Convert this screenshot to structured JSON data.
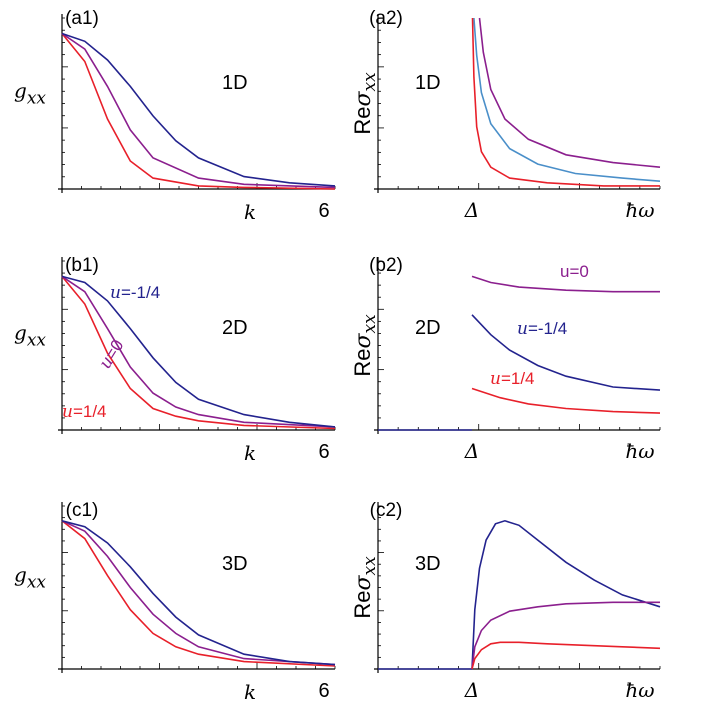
{
  "colors": {
    "red": "#e8202a",
    "purple": "#8b1f8e",
    "blue": "#23238e",
    "lightblue": "#4a8fc9"
  },
  "chart_data": [
    {
      "id": "a1",
      "type": "line",
      "panel_label": "(a1)",
      "dimension_label": "1D",
      "ylabel_main": "g",
      "ylabel_sub": "xx",
      "xlabel": "k",
      "x_end_tick": "6",
      "xlim": [
        0,
        6
      ],
      "ylim": [
        0,
        1.1
      ],
      "series": [
        {
          "color": "red",
          "x": [
            0,
            0.5,
            1,
            1.5,
            2,
            3,
            4,
            6
          ],
          "y": [
            1.0,
            0.82,
            0.45,
            0.18,
            0.07,
            0.02,
            0.01,
            0.0
          ]
        },
        {
          "color": "purple",
          "x": [
            0,
            0.5,
            1,
            1.5,
            2,
            3,
            4,
            6
          ],
          "y": [
            1.0,
            0.9,
            0.66,
            0.38,
            0.2,
            0.07,
            0.03,
            0.01
          ]
        },
        {
          "color": "blue",
          "x": [
            0,
            0.5,
            1,
            1.5,
            2,
            2.5,
            3,
            4,
            5,
            6
          ],
          "y": [
            1.0,
            0.95,
            0.83,
            0.66,
            0.47,
            0.31,
            0.2,
            0.08,
            0.04,
            0.02
          ]
        }
      ]
    },
    {
      "id": "a2",
      "type": "line",
      "panel_label": "(a2)",
      "dimension_label": "1D",
      "ylabel_prefix": "Re",
      "ylabel_sym": "σ",
      "ylabel_sub": "xx",
      "xlabel": "ħω",
      "x_marker_label": "Δ",
      "x_marker": 1,
      "xlim": [
        0,
        3
      ],
      "ylim": [
        0,
        1.1
      ],
      "series": [
        {
          "color": "purple",
          "x": [
            1.08,
            1.12,
            1.2,
            1.35,
            1.6,
            2.0,
            2.5,
            3.0
          ],
          "y": [
            1.1,
            0.88,
            0.64,
            0.45,
            0.32,
            0.22,
            0.17,
            0.14
          ]
        },
        {
          "color": "lightblue",
          "x": [
            1.02,
            1.05,
            1.1,
            1.2,
            1.4,
            1.7,
            2.1,
            2.6,
            3.0
          ],
          "y": [
            1.1,
            0.86,
            0.62,
            0.42,
            0.26,
            0.16,
            0.1,
            0.07,
            0.05
          ]
        },
        {
          "color": "red",
          "x": [
            1.005,
            1.02,
            1.05,
            1.1,
            1.2,
            1.4,
            1.8,
            2.4,
            3.0
          ],
          "y": [
            1.1,
            0.72,
            0.4,
            0.24,
            0.14,
            0.07,
            0.04,
            0.02,
            0.02
          ]
        }
      ]
    },
    {
      "id": "b1",
      "type": "line",
      "panel_label": "(b1)",
      "dimension_label": "2D",
      "ylabel_main": "g",
      "ylabel_sub": "xx",
      "xlabel": "k",
      "x_end_tick": "6",
      "xlim": [
        0,
        6
      ],
      "ylim": [
        0,
        1.1
      ],
      "series": [
        {
          "color": "red",
          "name": "u=1/4",
          "name_italic": "u",
          "name_rest": "=1/4",
          "x": [
            0,
            0.5,
            1,
            1.5,
            2,
            2.5,
            3,
            4,
            6
          ],
          "y": [
            1.0,
            0.82,
            0.5,
            0.27,
            0.14,
            0.09,
            0.06,
            0.03,
            0.01
          ]
        },
        {
          "color": "purple",
          "name": "u=0",
          "name_italic": "u",
          "name_rest": "=0",
          "x": [
            0,
            0.5,
            1,
            1.5,
            2,
            2.5,
            3,
            4,
            6
          ],
          "y": [
            1.0,
            0.9,
            0.66,
            0.41,
            0.24,
            0.15,
            0.1,
            0.05,
            0.02
          ]
        },
        {
          "color": "blue",
          "name": "u=-1/4",
          "name_italic": "u",
          "name_rest": "=-1/4",
          "x": [
            0,
            0.5,
            1,
            1.5,
            2,
            2.5,
            3,
            4,
            5,
            6
          ],
          "y": [
            1.0,
            0.96,
            0.84,
            0.66,
            0.47,
            0.31,
            0.2,
            0.1,
            0.05,
            0.02
          ]
        }
      ]
    },
    {
      "id": "b2",
      "type": "line",
      "panel_label": "(b2)",
      "dimension_label": "2D",
      "ylabel_prefix": "Re",
      "ylabel_sym": "σ",
      "ylabel_sub": "xx",
      "xlabel": "ħω",
      "x_marker_label": "Δ",
      "x_marker": 1,
      "xlim": [
        0,
        3
      ],
      "ylim": [
        0,
        1.1
      ],
      "series": [
        {
          "color": "purple",
          "name": "u=0",
          "name_italic": "",
          "name_rest": "u=0",
          "x": [
            1.0,
            1.2,
            1.5,
            2.0,
            2.5,
            3.0
          ],
          "y": [
            1.0,
            0.96,
            0.93,
            0.91,
            0.9,
            0.9
          ]
        },
        {
          "color": "blue",
          "name": "u=-1/4",
          "name_italic": "u",
          "name_rest": "=-1/4",
          "x": [
            1.0,
            1.2,
            1.4,
            1.7,
            2.0,
            2.5,
            3.0
          ],
          "y": [
            0.75,
            0.62,
            0.52,
            0.42,
            0.35,
            0.28,
            0.26
          ]
        },
        {
          "color": "red",
          "name": "u=1/4",
          "name_italic": "u",
          "name_rest": "=1/4",
          "x": [
            1.0,
            1.3,
            1.6,
            2.0,
            2.5,
            3.0
          ],
          "y": [
            0.27,
            0.21,
            0.17,
            0.14,
            0.12,
            0.11
          ]
        },
        {
          "color": "blue",
          "x": [
            0,
            1.0
          ],
          "y": [
            0,
            0
          ]
        }
      ]
    },
    {
      "id": "c1",
      "type": "line",
      "panel_label": "(c1)",
      "dimension_label": "3D",
      "ylabel_main": "g",
      "ylabel_sub": "xx",
      "xlabel": "k",
      "x_end_tick": "6",
      "xlim": [
        0,
        6
      ],
      "ylim": [
        0,
        1.1
      ],
      "series": [
        {
          "color": "red",
          "x": [
            0,
            0.5,
            1,
            1.5,
            2,
            2.5,
            3,
            4,
            6
          ],
          "y": [
            1.0,
            0.88,
            0.63,
            0.4,
            0.24,
            0.15,
            0.1,
            0.05,
            0.02
          ]
        },
        {
          "color": "purple",
          "x": [
            0,
            0.5,
            1,
            1.5,
            2,
            2.5,
            3,
            4,
            6
          ],
          "y": [
            1.0,
            0.93,
            0.76,
            0.55,
            0.37,
            0.24,
            0.15,
            0.07,
            0.03
          ]
        },
        {
          "color": "blue",
          "x": [
            0,
            0.5,
            1,
            1.5,
            2,
            2.5,
            3,
            4,
            5,
            6
          ],
          "y": [
            1.0,
            0.96,
            0.85,
            0.69,
            0.51,
            0.35,
            0.23,
            0.1,
            0.05,
            0.03
          ]
        }
      ]
    },
    {
      "id": "c2",
      "type": "line",
      "panel_label": "(c2)",
      "dimension_label": "3D",
      "ylabel_prefix": "Re",
      "ylabel_sym": "σ",
      "ylabel_sub": "xx",
      "xlabel": "ħω",
      "x_marker_label": "Δ",
      "x_marker": 1,
      "xlim": [
        0,
        3
      ],
      "ylim": [
        0,
        1.1
      ],
      "series": [
        {
          "color": "blue",
          "x": [
            0,
            1.0,
            1.03,
            1.08,
            1.15,
            1.25,
            1.35,
            1.5,
            1.7,
            2.0,
            2.3,
            2.6,
            3.0
          ],
          "y": [
            0,
            0,
            0.4,
            0.68,
            0.87,
            0.98,
            1.0,
            0.97,
            0.87,
            0.72,
            0.6,
            0.5,
            0.42
          ]
        },
        {
          "color": "purple",
          "x": [
            1.0,
            1.03,
            1.1,
            1.2,
            1.4,
            1.7,
            2.0,
            2.5,
            3.0
          ],
          "y": [
            0,
            0.15,
            0.26,
            0.33,
            0.39,
            0.42,
            0.44,
            0.45,
            0.45
          ]
        },
        {
          "color": "red",
          "x": [
            1.0,
            1.03,
            1.1,
            1.2,
            1.3,
            1.5,
            1.8,
            2.2,
            2.6,
            3.0
          ],
          "y": [
            0,
            0.07,
            0.13,
            0.17,
            0.18,
            0.18,
            0.17,
            0.16,
            0.15,
            0.14
          ]
        }
      ]
    }
  ]
}
